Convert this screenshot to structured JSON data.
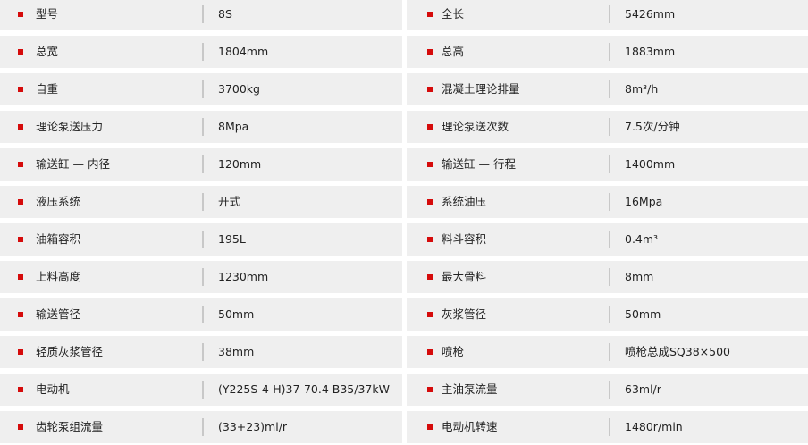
{
  "accent_color": "#d50b0b",
  "rows": [
    [
      {
        "label": "型号",
        "value": "8S"
      },
      {
        "label": "全长",
        "value": "5426mm"
      }
    ],
    [
      {
        "label": "总宽",
        "value": "1804mm"
      },
      {
        "label": "总高",
        "value": "1883mm"
      }
    ],
    [
      {
        "label": "自重",
        "value": "3700kg"
      },
      {
        "label": "混凝土理论排量",
        "value": "8m³/h"
      }
    ],
    [
      {
        "label": "理论泵送压力",
        "value": "8Mpa"
      },
      {
        "label": "理论泵送次数",
        "value": "7.5次/分钟"
      }
    ],
    [
      {
        "label": "输送缸 — 内径",
        "value": "120mm"
      },
      {
        "label": "输送缸 — 行程",
        "value": "1400mm"
      }
    ],
    [
      {
        "label": "液压系统",
        "value": "开式"
      },
      {
        "label": "系统油压",
        "value": "16Mpa"
      }
    ],
    [
      {
        "label": "油箱容积",
        "value": "195L"
      },
      {
        "label": "料斗容积",
        "value": "0.4m³"
      }
    ],
    [
      {
        "label": "上料高度",
        "value": "1230mm"
      },
      {
        "label": "最大骨料",
        "value": "8mm"
      }
    ],
    [
      {
        "label": "输送管径",
        "value": "50mm"
      },
      {
        "label": "灰浆管径",
        "value": "50mm"
      }
    ],
    [
      {
        "label": "轻质灰浆管径",
        "value": "38mm"
      },
      {
        "label": "喷枪",
        "value": "喷枪总成SQ38×500"
      }
    ],
    [
      {
        "label": "电动机",
        "value": "(Y225S-4-H)37-70.4 B35/37kW"
      },
      {
        "label": "主油泵流量",
        "value": "63ml/r"
      }
    ],
    [
      {
        "label": "齿轮泵组流量",
        "value": "(33+23)ml/r"
      },
      {
        "label": "电动机转速",
        "value": "1480r/min"
      }
    ]
  ]
}
